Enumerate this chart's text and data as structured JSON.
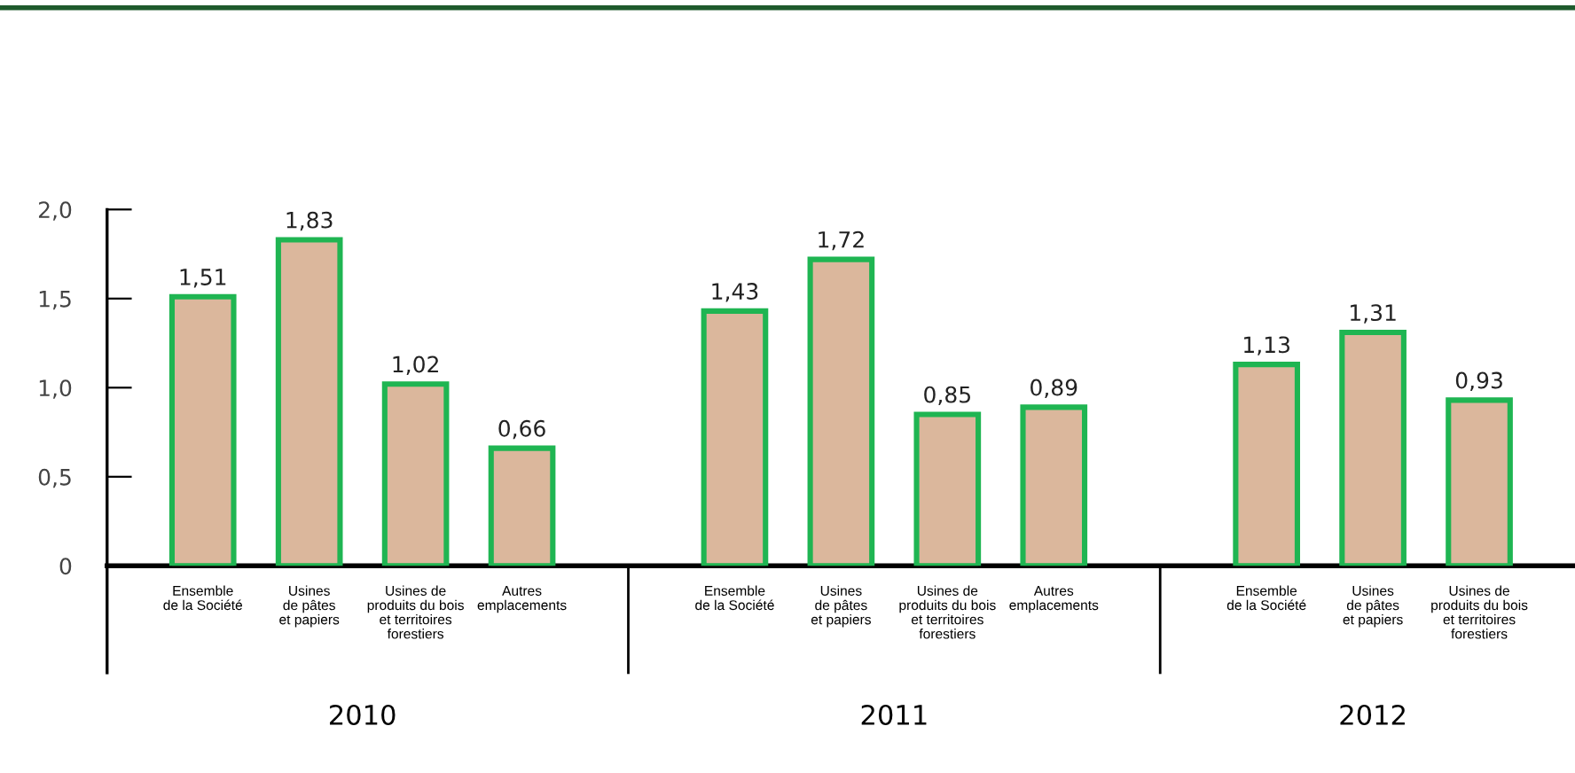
{
  "chart_data": {
    "type": "bar",
    "categories": [
      "Ensemble\nde la Société",
      "Usines\nde pâtes\net papiers",
      "Usines de\nproduits du bois\net territoires\nforestiers",
      "Autres\nemplacements",
      null,
      "Ensemble\nde la Société",
      "Usines\nde pâtes\net papiers",
      "Usines de\nproduits du bois\net territoires\nforestiers",
      "Autres\nemplacements",
      null,
      "Ensemble\nde la Société",
      "Usines\nde pâtes\net papiers",
      "Usines de\nproduits du bois\net territoires\nforestiers"
    ],
    "values": [
      1.51,
      1.83,
      1.02,
      0.66,
      null,
      1.43,
      1.72,
      0.85,
      0.89,
      null,
      1.13,
      1.31,
      0.93
    ],
    "value_labels": [
      "1,51",
      "1,83",
      "1,02",
      "0,66",
      null,
      "1,43",
      "1,72",
      "0,85",
      "0,89",
      null,
      "1,13",
      "1,31",
      "0,93"
    ],
    "color": "#dbb79c",
    "ylim": [
      0,
      2.0
    ],
    "yticks": [
      {
        "value": 0,
        "label": "0"
      },
      {
        "value": 0.5,
        "label": "0,5"
      },
      {
        "value": 1.0,
        "label": "1,0"
      },
      {
        "value": 1.5,
        "label": "1,5"
      },
      {
        "value": 2.0,
        "label": "2,0"
      }
    ],
    "annotations": [
      "2010",
      "2011",
      "2012"
    ],
    "grid": false,
    "legend": false
  }
}
